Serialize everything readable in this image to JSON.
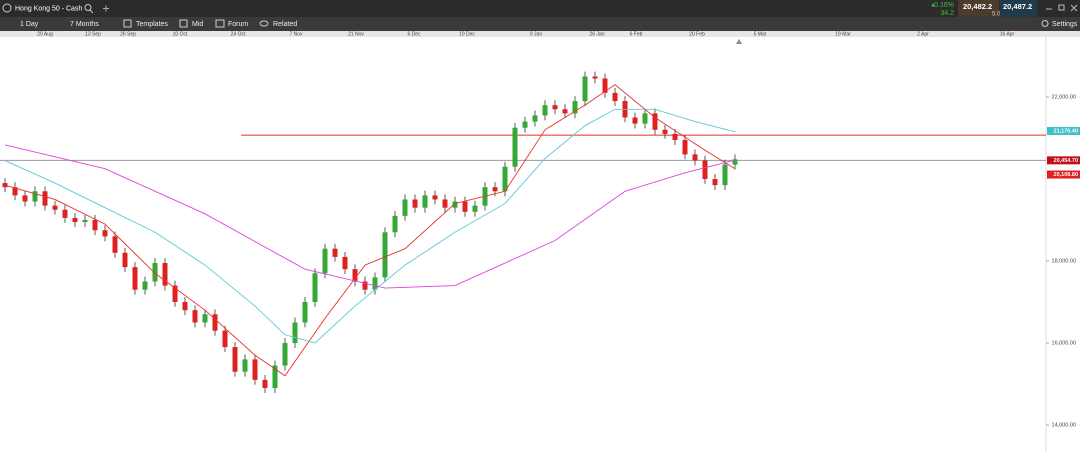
{
  "header": {
    "instrument": "Hong Kong 50 - Cash",
    "change_pct": "0.16%",
    "change_pts": "34.2",
    "sell": "20,482.2",
    "spread": "5.0",
    "buy": "20,487.2",
    "settings": "Settings"
  },
  "toolbar": [
    "1 Day",
    "7 Months",
    "Templates",
    "Mid",
    "Forum",
    "Related"
  ],
  "chart_data": {
    "type": "candlestick",
    "x_labels": [
      "29 Aug",
      "13 Sep",
      "26 Sep",
      "10 Oct",
      "24 Oct",
      "7 Nov",
      "21 Nov",
      "6 Dec",
      "19 Dec",
      "9 Jan",
      "26 Jan",
      "6 Feb",
      "20 Feb",
      "5 Mar",
      "19 Mar",
      "2 Apr",
      "16 Apr"
    ],
    "open": [
      19900,
      19800,
      19600,
      19450,
      19700,
      19350,
      19250,
      19050,
      18950,
      19000,
      18750,
      18600,
      18200,
      17850,
      17300,
      17500,
      17950,
      17400,
      17000,
      16800,
      16500,
      16700,
      16300,
      15900,
      15300,
      15600,
      15100,
      14900,
      15450,
      16000,
      16500,
      17000,
      17700,
      18300,
      18100,
      17800,
      17500,
      17300,
      17600,
      18700,
      19100,
      19500,
      19300,
      19600,
      19500,
      19300,
      19450,
      19200,
      19350,
      19800,
      19700,
      20300,
      21250,
      21400,
      21550,
      21800,
      21700,
      21600,
      21900,
      22500,
      22450,
      22100,
      21900,
      21500,
      21350,
      21600,
      21200,
      21100,
      20950,
      20600,
      20450,
      20000,
      19850,
      20350
    ],
    "high": [
      20020,
      19920,
      19720,
      19820,
      19820,
      19470,
      19370,
      19170,
      19120,
      19120,
      18870,
      18720,
      18320,
      17970,
      17620,
      18070,
      18070,
      17520,
      17120,
      16920,
      16820,
      16820,
      16420,
      16020,
      15720,
      15720,
      15220,
      15570,
      16120,
      16620,
      17120,
      17820,
      18420,
      18420,
      18220,
      17920,
      17620,
      17720,
      18820,
      19220,
      19620,
      19620,
      19720,
      19720,
      19620,
      19570,
      19570,
      19470,
      19920,
      19920,
      20420,
      21370,
      21520,
      21670,
      21920,
      21920,
      21820,
      22020,
      22620,
      22620,
      22570,
      22220,
      22020,
      21620,
      21720,
      21720,
      21320,
      21220,
      21070,
      20720,
      20570,
      20120,
      20470,
      20600
    ],
    "low": [
      19680,
      19480,
      19330,
      19330,
      19230,
      19130,
      18930,
      18830,
      18830,
      18630,
      18480,
      18080,
      17730,
      17180,
      17180,
      17380,
      17280,
      16880,
      16680,
      16380,
      16380,
      16180,
      15780,
      15180,
      15180,
      14980,
      14780,
      14780,
      15330,
      15880,
      16380,
      16880,
      17580,
      17980,
      17680,
      17380,
      17180,
      17180,
      17480,
      18580,
      18980,
      19180,
      19180,
      19380,
      19180,
      19180,
      19080,
      19080,
      19230,
      19580,
      19580,
      20180,
      21130,
      21280,
      21430,
      21580,
      21480,
      21480,
      21780,
      22330,
      21980,
      21780,
      21380,
      21230,
      21230,
      21080,
      20980,
      20830,
      20480,
      20330,
      19880,
      19730,
      19730,
      20230
    ],
    "close": [
      19800,
      19600,
      19450,
      19700,
      19350,
      19250,
      19050,
      18950,
      19000,
      18750,
      18600,
      18200,
      17850,
      17300,
      17500,
      17950,
      17400,
      17000,
      16800,
      16500,
      16700,
      16300,
      15900,
      15300,
      15600,
      15100,
      14900,
      15450,
      16000,
      16500,
      17000,
      17700,
      18300,
      18100,
      17800,
      17500,
      17300,
      17600,
      18700,
      19100,
      19500,
      19300,
      19600,
      19500,
      19300,
      19450,
      19200,
      19350,
      19800,
      19700,
      20300,
      21250,
      21400,
      21550,
      21800,
      21700,
      21600,
      21900,
      22500,
      22450,
      22100,
      21900,
      21500,
      21350,
      21600,
      21200,
      21100,
      20950,
      20600,
      20450,
      20000,
      19850,
      20350,
      20480
    ],
    "up_color": "#34a834",
    "down_color": "#e0201f",
    "moving_averages": [
      {
        "color": "#e8302a",
        "x": [
          0,
          5,
          10,
          15,
          20,
          25,
          28,
          32,
          36,
          40,
          45,
          50,
          54,
          58,
          61,
          65,
          70,
          73
        ],
        "values": [
          19850,
          19500,
          18900,
          17700,
          16800,
          15700,
          15200,
          16600,
          17900,
          18300,
          19400,
          19700,
          21200,
          21800,
          22300,
          21500,
          20700,
          20250
        ]
      },
      {
        "color": "#5cc8d8",
        "x": [
          0,
          5,
          10,
          15,
          20,
          25,
          28,
          31,
          35,
          40,
          45,
          50,
          54,
          58,
          61,
          65,
          69,
          73
        ],
        "values": [
          20450,
          19900,
          19300,
          18700,
          17900,
          16900,
          16200,
          16000,
          16900,
          17900,
          18700,
          19400,
          20500,
          21300,
          21700,
          21700,
          21400,
          21150
        ]
      },
      {
        "color": "#e040e0",
        "x": [
          0,
          10,
          20,
          30,
          38,
          45,
          55,
          62,
          68,
          73
        ],
        "values": [
          20830,
          20250,
          19150,
          17800,
          17340,
          17400,
          18500,
          19700,
          20150,
          20460
        ]
      }
    ],
    "lines": [
      {
        "value": 21070,
        "color": "#e0302a"
      },
      {
        "value": 20454.7,
        "color": "#999999"
      }
    ],
    "tags": [
      {
        "value": 21170.4,
        "label": "21,170.40",
        "color": "#3fc1c9"
      },
      {
        "value": 20454.7,
        "label": "20,454.70",
        "color": "#c0101a"
      },
      {
        "value": 20108.8,
        "label": "20,108.80",
        "color": "#e0201f"
      }
    ],
    "ylim": [
      13341,
      23463
    ],
    "yticks": [
      {
        "value": 22000,
        "label": "22,000.00"
      },
      {
        "value": 18000,
        "label": "18,000.00"
      },
      {
        "value": 16000,
        "label": "16,000.00"
      },
      {
        "value": 14000,
        "label": "14,000.00"
      }
    ]
  }
}
